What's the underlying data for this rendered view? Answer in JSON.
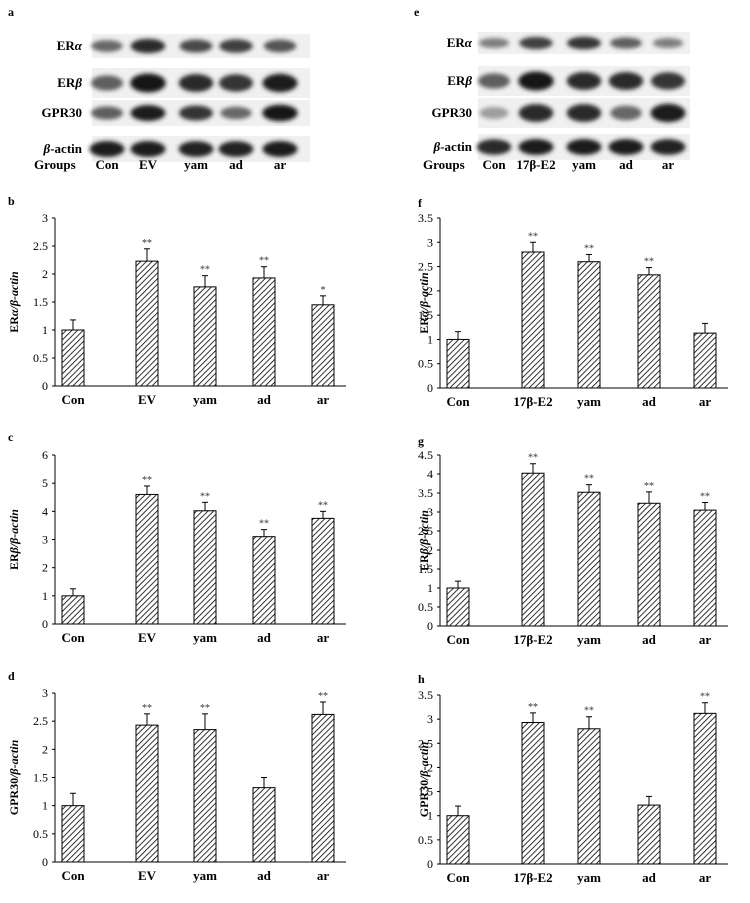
{
  "blots": [
    {
      "panel_label": "a",
      "rows": [
        {
          "label_main": "ER",
          "label_italic": "α",
          "label_after": "",
          "intensity": [
            0.55,
            0.85,
            0.7,
            0.75,
            0.65
          ]
        },
        {
          "label_main": "ER",
          "label_italic": "β",
          "label_after": "",
          "intensity": [
            0.6,
            0.95,
            0.85,
            0.8,
            0.9
          ]
        },
        {
          "label_main": "GPR30",
          "label_italic": "",
          "label_after": "",
          "intensity": [
            0.6,
            0.9,
            0.8,
            0.55,
            0.95
          ]
        },
        {
          "label_main": "",
          "label_italic": "β",
          "label_after": "-actin",
          "intensity": [
            0.9,
            0.9,
            0.88,
            0.88,
            0.9
          ]
        }
      ],
      "groups_label": "Groups",
      "lanes": [
        "Con",
        "EV",
        "yam",
        "ad",
        "ar"
      ]
    },
    {
      "panel_label": "e",
      "rows": [
        {
          "label_main": "ER",
          "label_italic": "α",
          "label_after": "",
          "intensity": [
            0.45,
            0.75,
            0.8,
            0.6,
            0.45
          ]
        },
        {
          "label_main": "ER",
          "label_italic": "β",
          "label_after": "",
          "intensity": [
            0.6,
            0.95,
            0.85,
            0.85,
            0.8
          ]
        },
        {
          "label_main": "GPR30",
          "label_italic": "",
          "label_after": "",
          "intensity": [
            0.3,
            0.85,
            0.85,
            0.55,
            0.9
          ]
        },
        {
          "label_main": "",
          "label_italic": "β",
          "label_after": "-actin",
          "intensity": [
            0.85,
            0.9,
            0.9,
            0.9,
            0.88
          ]
        }
      ],
      "groups_label": "Groups",
      "lanes": [
        "Con",
        "17β-E2",
        "yam",
        "ad",
        "ar"
      ]
    }
  ],
  "chart_data": [
    {
      "type": "bar",
      "panel_label": "b",
      "categories": [
        "Con",
        "EV",
        "yam",
        "ad",
        "ar"
      ],
      "values": [
        1.0,
        2.23,
        1.77,
        1.93,
        1.45
      ],
      "errors": [
        0.18,
        0.22,
        0.2,
        0.2,
        0.16
      ],
      "significance": [
        "",
        "**",
        "**",
        "**",
        "*"
      ],
      "ylim": [
        0,
        3
      ],
      "yticks": [
        "0",
        "0.5",
        "1",
        "1.5",
        "2",
        "2.5",
        "3"
      ],
      "ylabel_prefix": "ER",
      "ylabel_greek": "α",
      "ylabel_suffix": "/β-actin"
    },
    {
      "type": "bar",
      "panel_label": "f",
      "categories": [
        "Con",
        "17β-E2",
        "yam",
        "ad",
        "ar"
      ],
      "values": [
        1.0,
        2.8,
        2.6,
        2.33,
        1.13
      ],
      "errors": [
        0.16,
        0.2,
        0.15,
        0.15,
        0.2
      ],
      "significance": [
        "",
        "**",
        "**",
        "**",
        ""
      ],
      "ylim": [
        0,
        3.5
      ],
      "yticks": [
        "0",
        "0.5",
        "1",
        "1.5",
        "2",
        "2.5",
        "3",
        "3.5"
      ],
      "ylabel_prefix": "ER",
      "ylabel_greek": "α",
      "ylabel_suffix": "/β-actin"
    },
    {
      "type": "bar",
      "panel_label": "c",
      "categories": [
        "Con",
        "EV",
        "yam",
        "ad",
        "ar"
      ],
      "values": [
        1.0,
        4.6,
        4.02,
        3.1,
        3.75
      ],
      "errors": [
        0.25,
        0.3,
        0.3,
        0.25,
        0.25
      ],
      "significance": [
        "",
        "**",
        "**",
        "**",
        "**"
      ],
      "ylim": [
        0,
        6
      ],
      "yticks": [
        "0",
        "1",
        "2",
        "3",
        "4",
        "5",
        "6"
      ],
      "ylabel_prefix": "ER",
      "ylabel_greek": "β",
      "ylabel_suffix": "/β-actin"
    },
    {
      "type": "bar",
      "panel_label": "g",
      "categories": [
        "Con",
        "17β-E2",
        "yam",
        "ad",
        "ar"
      ],
      "values": [
        1.0,
        4.02,
        3.52,
        3.23,
        3.05
      ],
      "errors": [
        0.18,
        0.25,
        0.2,
        0.3,
        0.2
      ],
      "significance": [
        "",
        "**",
        "**",
        "**",
        "**"
      ],
      "ylim": [
        0,
        4.5
      ],
      "yticks": [
        "0",
        "0.5",
        "1",
        "1.5",
        "2",
        "2.5",
        "3",
        "3.5",
        "4",
        "4.5"
      ],
      "ylabel_prefix": "ER",
      "ylabel_greek": "β",
      "ylabel_suffix": "/β-actin"
    },
    {
      "type": "bar",
      "panel_label": "d",
      "categories": [
        "Con",
        "EV",
        "yam",
        "ad",
        "ar"
      ],
      "values": [
        1.0,
        2.43,
        2.35,
        1.32,
        2.62
      ],
      "errors": [
        0.22,
        0.2,
        0.28,
        0.18,
        0.22
      ],
      "significance": [
        "",
        "**",
        "**",
        "",
        "**"
      ],
      "ylim": [
        0,
        3
      ],
      "yticks": [
        "0",
        "0.5",
        "1",
        "1.5",
        "2",
        "2.5",
        "3"
      ],
      "ylabel_prefix": "GPR30",
      "ylabel_greek": "",
      "ylabel_suffix": "/β-actin"
    },
    {
      "type": "bar",
      "panel_label": "h",
      "categories": [
        "Con",
        "17β-E2",
        "yam",
        "ad",
        "ar"
      ],
      "values": [
        1.0,
        2.93,
        2.8,
        1.22,
        3.12
      ],
      "errors": [
        0.2,
        0.2,
        0.25,
        0.18,
        0.22
      ],
      "significance": [
        "",
        "**",
        "**",
        "",
        "**"
      ],
      "ylim": [
        0,
        3.5
      ],
      "yticks": [
        "0",
        "0.5",
        "1",
        "1.5",
        "2",
        "2.5",
        "3",
        "3.5"
      ],
      "ylabel_prefix": "GPR30",
      "ylabel_greek": "",
      "ylabel_suffix": "/β-actin"
    }
  ]
}
